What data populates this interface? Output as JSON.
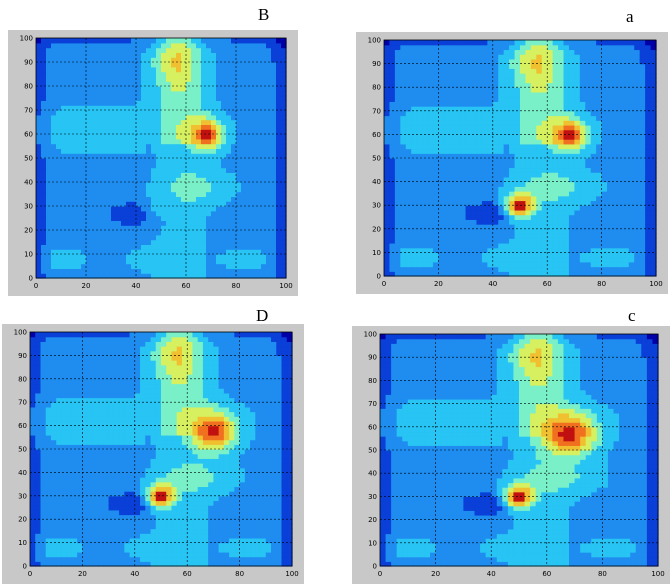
{
  "panels": [
    {
      "label": "B"
    },
    {
      "label": "a"
    },
    {
      "label": "D"
    },
    {
      "label": "c"
    }
  ],
  "colors": {
    "levels": [
      "#0000a8",
      "#0a3fd8",
      "#1f8cf0",
      "#27c4f4",
      "#7af0c8",
      "#d6f060",
      "#f0c030",
      "#f07020",
      "#c01010"
    ],
    "frame": "#c8c8c8",
    "grid": "#000000"
  },
  "chart_data": [
    {
      "type": "heatmap",
      "title": "B",
      "xlabel": "",
      "ylabel": "",
      "xlim": [
        0,
        100
      ],
      "ylim": [
        0,
        100
      ],
      "xticks": [
        0,
        20,
        40,
        60,
        80,
        100
      ],
      "yticks": [
        0,
        10,
        20,
        30,
        40,
        50,
        60,
        70,
        80,
        90,
        100
      ],
      "grid": true,
      "hotspots": [
        {
          "x": 68,
          "y": 60,
          "level": 8,
          "r": 6
        },
        {
          "x": 50,
          "y": 30,
          "level": 3,
          "r": 6
        }
      ]
    },
    {
      "type": "heatmap",
      "title": "a",
      "xlabel": "",
      "ylabel": "",
      "xlim": [
        0,
        100
      ],
      "ylim": [
        0,
        100
      ],
      "xticks": [
        0,
        20,
        40,
        60,
        80,
        100
      ],
      "yticks": [
        0,
        10,
        20,
        30,
        40,
        50,
        60,
        70,
        80,
        90,
        100
      ],
      "grid": true,
      "hotspots": [
        {
          "x": 68,
          "y": 60,
          "level": 8,
          "r": 6
        },
        {
          "x": 50,
          "y": 30,
          "level": 8,
          "r": 5
        }
      ]
    },
    {
      "type": "heatmap",
      "title": "D",
      "xlabel": "",
      "ylabel": "",
      "xlim": [
        0,
        100
      ],
      "ylim": [
        0,
        100
      ],
      "xticks": [
        0,
        20,
        40,
        60,
        80,
        100
      ],
      "yticks": [
        0,
        10,
        20,
        30,
        40,
        50,
        60,
        70,
        80,
        90,
        100
      ],
      "grid": true,
      "hotspots": [
        {
          "x": 70,
          "y": 58,
          "level": 8,
          "r": 8
        },
        {
          "x": 50,
          "y": 30,
          "level": 8,
          "r": 5
        }
      ]
    },
    {
      "type": "heatmap",
      "title": "c",
      "xlabel": "",
      "ylabel": "",
      "xlim": [
        0,
        100
      ],
      "ylim": [
        0,
        100
      ],
      "xticks": [
        0,
        20,
        40,
        60,
        80,
        100
      ],
      "yticks": [
        0,
        10,
        20,
        30,
        40,
        50,
        60,
        70,
        80,
        90,
        100
      ],
      "grid": true,
      "hotspots": [
        {
          "x": 68,
          "y": 57,
          "level": 8,
          "r": 9
        },
        {
          "x": 50,
          "y": 30,
          "level": 8,
          "r": 5
        }
      ]
    }
  ]
}
